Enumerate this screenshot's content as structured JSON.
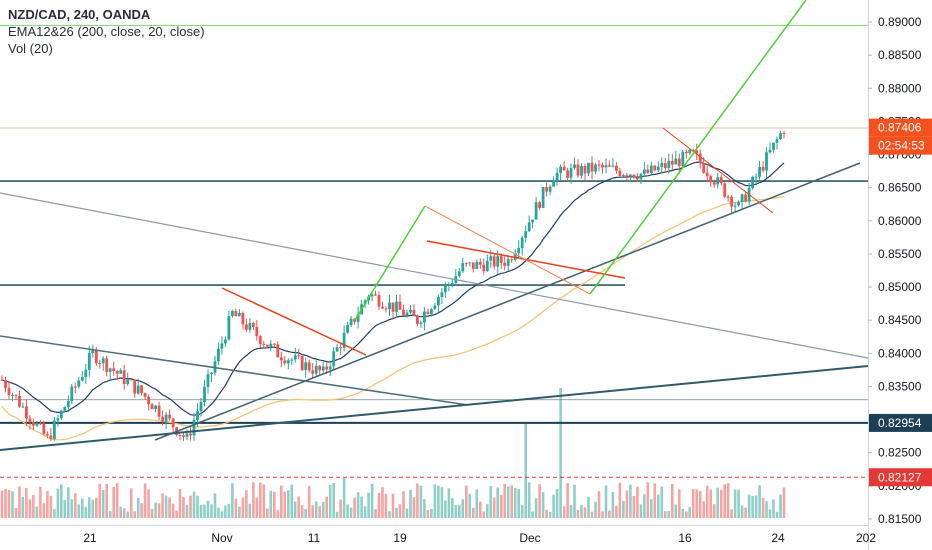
{
  "legend": {
    "symbol": "NZD/CAD, 240, OANDA",
    "ema": "EMA12&26 (200, close, 20, close)",
    "vol": "Vol (20)"
  },
  "colors": {
    "candle_up": "#26a69a",
    "candle_down": "#ef5350",
    "vol_up": "#8fcfc8",
    "vol_down": "#f4a4a2",
    "ema_fast": "#1e3f66",
    "ema_slow": "#f5c16c",
    "level_line": "#2f5b6b",
    "green_line": "#4cd137",
    "red_line": "#e84118",
    "price_tag": "#f4511e",
    "level_tag": "#1d3f55",
    "red_tag": "#e53935",
    "top_green": "#7bd26a"
  },
  "price_axis": {
    "ticks": [
      "0.89000",
      "0.88500",
      "0.88000",
      "0.87500",
      "0.87000",
      "0.86500",
      "0.86000",
      "0.85500",
      "0.85000",
      "0.84500",
      "0.84000",
      "0.83500",
      "0.83000",
      "0.82500",
      "0.82000",
      "0.81500"
    ],
    "current_price": "0.87406",
    "countdown": "02:54:53",
    "level_tag": "0.82954",
    "red_level_tag": "0.82127"
  },
  "time_axis": {
    "labels": [
      "21",
      "Nov",
      "11",
      "19",
      "Dec",
      "16",
      "24",
      "202"
    ]
  },
  "chart_data": {
    "type": "candlestick",
    "symbol": "NZD/CAD",
    "timeframe": "240",
    "ylim": [
      0.815,
      0.891
    ],
    "approx_close_path": [
      {
        "x": "Oct 16",
        "y": 0.836
      },
      {
        "x": "Oct 18",
        "y": 0.827
      },
      {
        "x": "Oct 21",
        "y": 0.84
      },
      {
        "x": "Oct 25",
        "y": 0.834
      },
      {
        "x": "Oct 28",
        "y": 0.827
      },
      {
        "x": "Oct 31",
        "y": 0.846
      },
      {
        "x": "Nov 5",
        "y": 0.84
      },
      {
        "x": "Nov 8",
        "y": 0.837
      },
      {
        "x": "Nov 12",
        "y": 0.849
      },
      {
        "x": "Nov 15",
        "y": 0.845
      },
      {
        "x": "Nov 19",
        "y": 0.853
      },
      {
        "x": "Nov 26",
        "y": 0.854
      },
      {
        "x": "Dec 2",
        "y": 0.867
      },
      {
        "x": "Dec 5",
        "y": 0.868
      },
      {
        "x": "Dec 10",
        "y": 0.867
      },
      {
        "x": "Dec 13",
        "y": 0.87
      },
      {
        "x": "Dec 19",
        "y": 0.862
      },
      {
        "x": "Dec 24",
        "y": 0.874
      }
    ],
    "current_price": 0.87406,
    "horizontal_levels": [
      0.8895,
      0.874,
      0.866,
      0.8503,
      0.833,
      0.8295,
      0.8213
    ]
  }
}
